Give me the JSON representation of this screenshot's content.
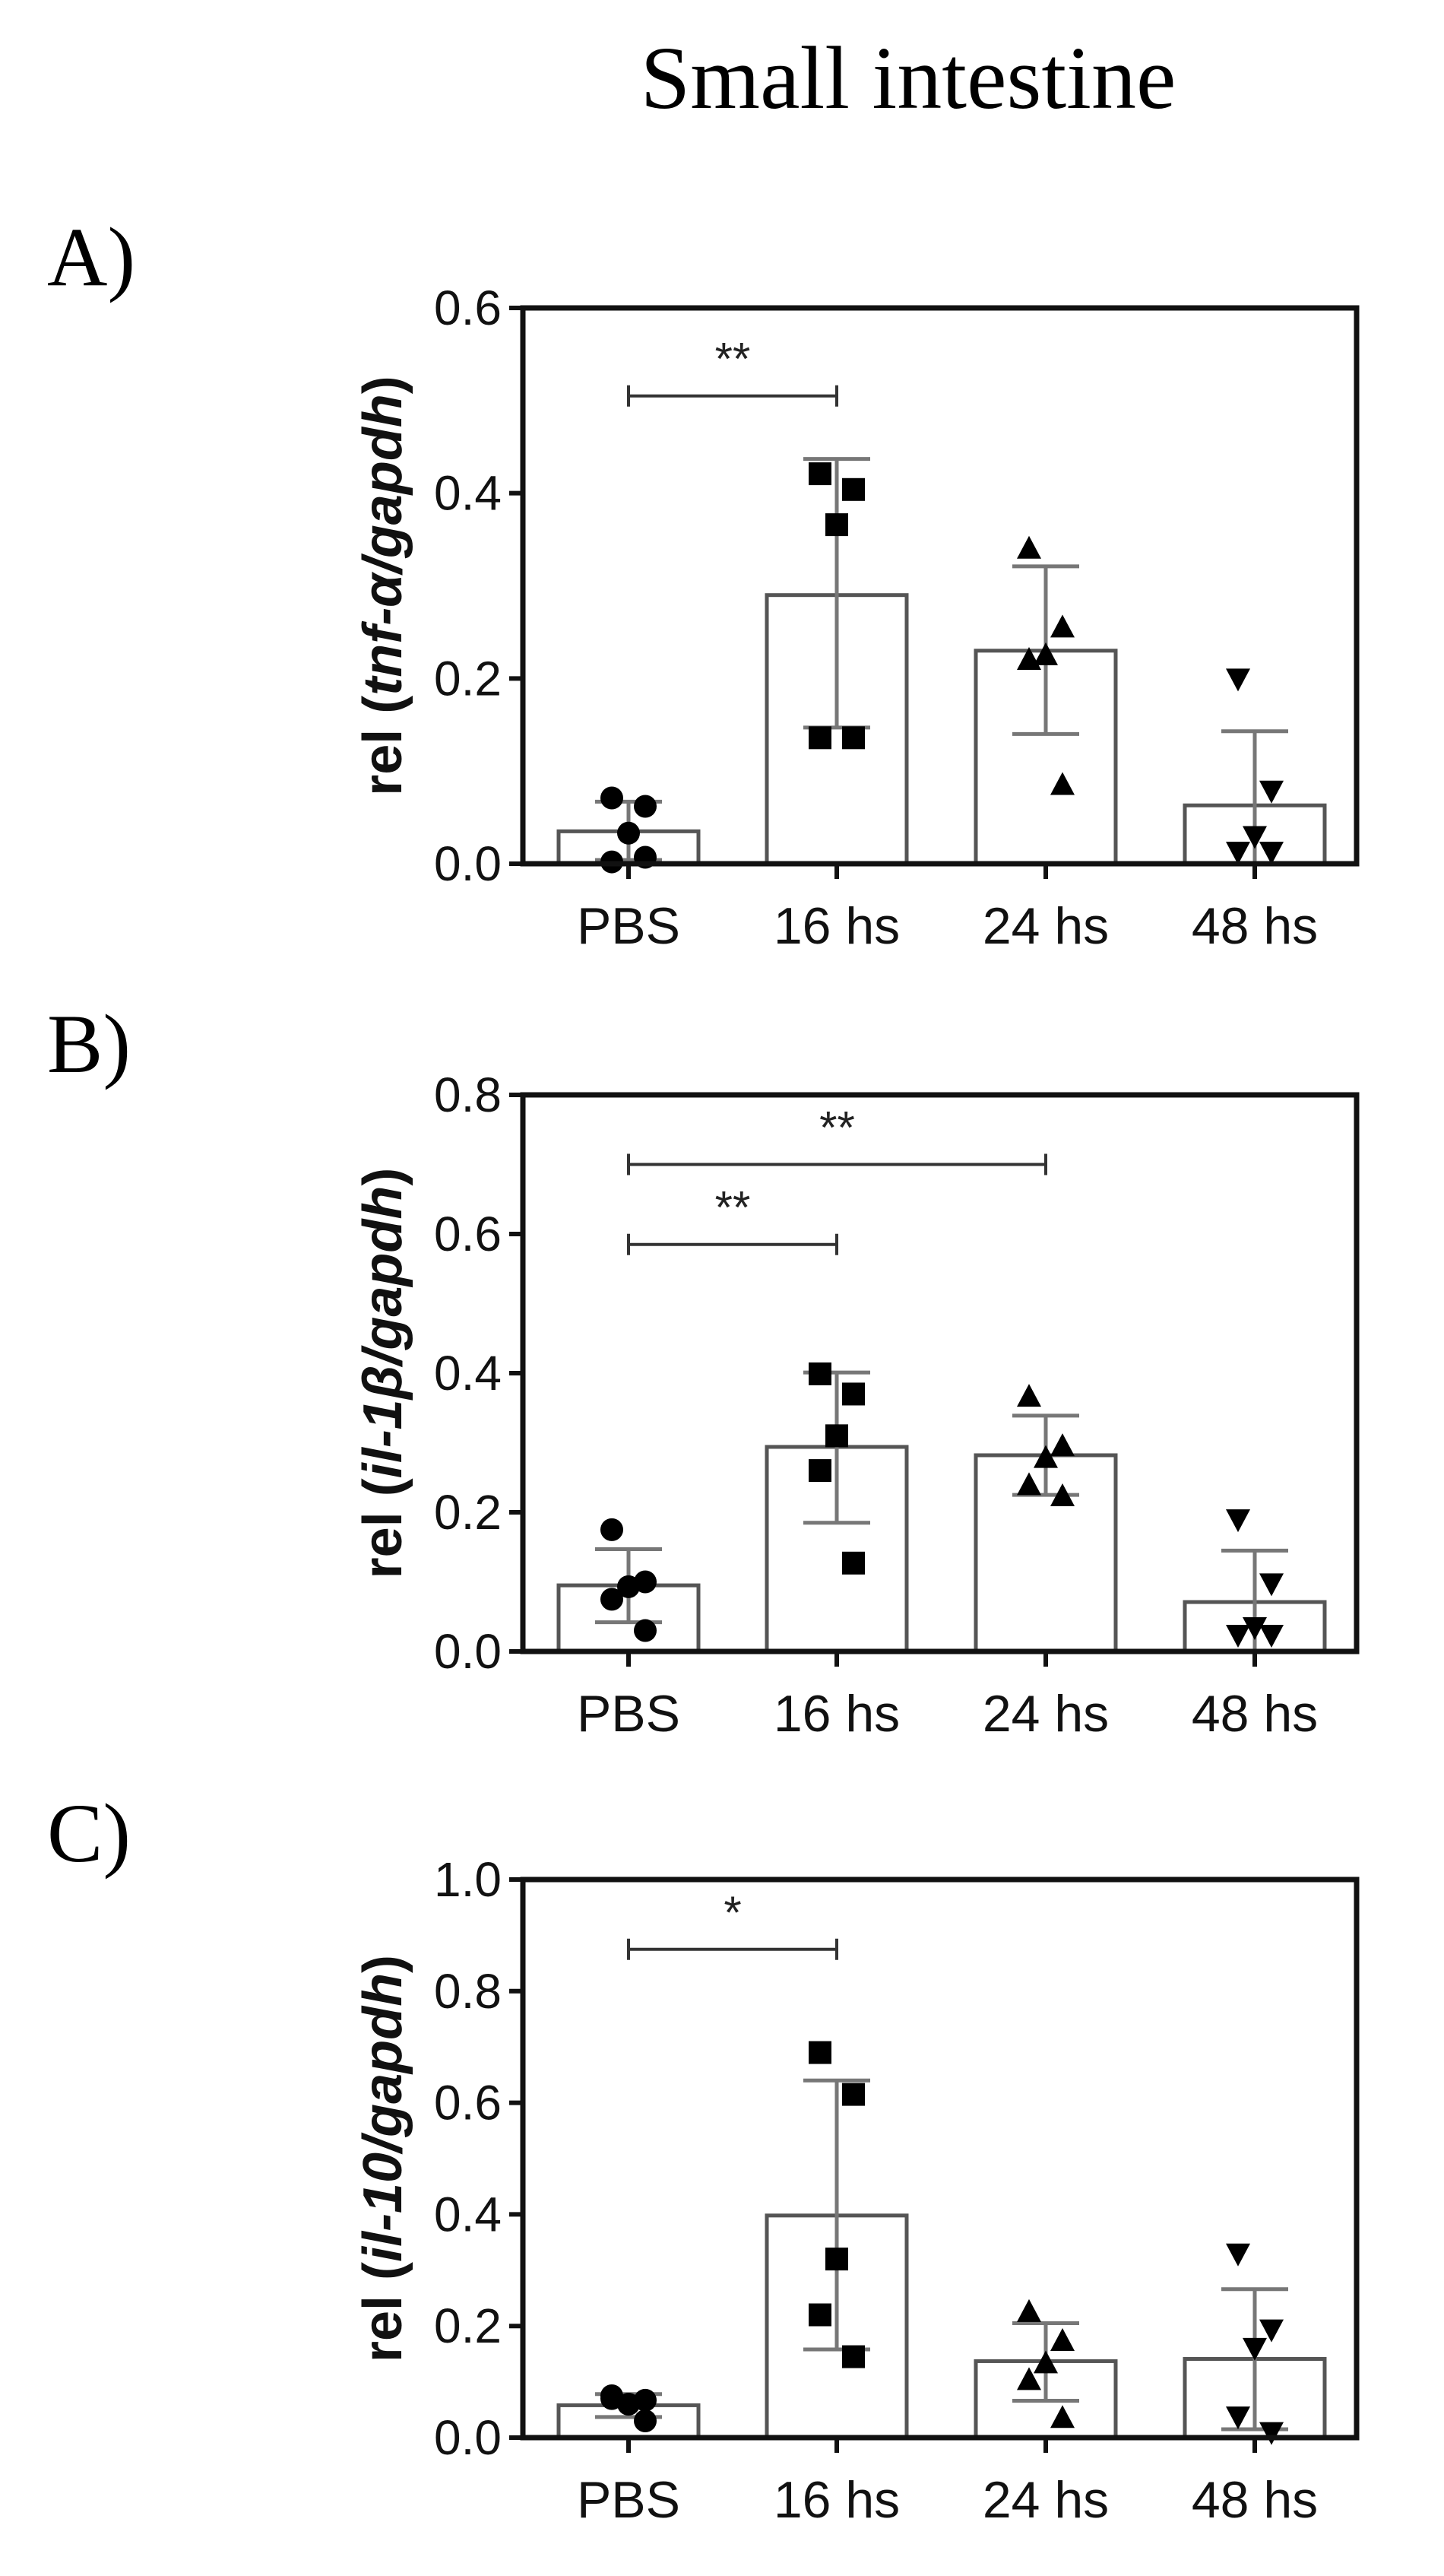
{
  "figure": {
    "title": "Small intestine",
    "colors": {
      "axis": "#111111",
      "bar_outline": "#555555",
      "error_bar": "#777777",
      "marker": "#000000",
      "background": "#ffffff"
    }
  },
  "chart_data": [
    {
      "panel": "A)",
      "type": "bar",
      "ylabel_prefix": "rel (",
      "ylabel_gene": "tnf-α/gapdh",
      "ylabel_suffix": ")",
      "categories": [
        "PBS",
        "16 hs",
        "24 hs",
        "48 hs"
      ],
      "markers": [
        "circle",
        "square",
        "triangle-up",
        "triangle-down"
      ],
      "ylim": [
        0,
        0.6
      ],
      "yticks": [
        0.0,
        0.2,
        0.4,
        0.6
      ],
      "ytick_labels": [
        "0.0",
        "0.2",
        "0.4",
        "0.6"
      ],
      "means": [
        0.035,
        0.29,
        0.23,
        0.063
      ],
      "err_upper": [
        0.067,
        0.437,
        0.321,
        0.143
      ],
      "err_lower": [
        0.004,
        0.147,
        0.14,
        null
      ],
      "points": [
        [
          0.071,
          0.062,
          0.033,
          0.002,
          0.007
        ],
        [
          0.421,
          0.404,
          0.366,
          0.136,
          0.136
        ],
        [
          0.34,
          0.255,
          0.225,
          0.22,
          0.085
        ],
        [
          0.2,
          0.079,
          0.03,
          0.013,
          0.013
        ]
      ],
      "significance": [
        {
          "from": 0,
          "to": 1,
          "y": 0.505,
          "label": "**"
        }
      ],
      "grid": false,
      "legend": null
    },
    {
      "panel": "B)",
      "type": "bar",
      "ylabel_prefix": "rel (",
      "ylabel_gene": "il-1β/gapdh",
      "ylabel_suffix": ")",
      "categories": [
        "PBS",
        "16 hs",
        "24 hs",
        "48 hs"
      ],
      "markers": [
        "circle",
        "square",
        "triangle-up",
        "triangle-down"
      ],
      "ylim": [
        0,
        0.8
      ],
      "yticks": [
        0.0,
        0.2,
        0.4,
        0.6,
        0.8
      ],
      "ytick_labels": [
        "0.0",
        "0.2",
        "0.4",
        "0.6",
        "0.8"
      ],
      "means": [
        0.095,
        0.294,
        0.282,
        0.071
      ],
      "err_upper": [
        0.147,
        0.401,
        0.339,
        0.145
      ],
      "err_lower": [
        0.042,
        0.185,
        0.225,
        null
      ],
      "points": [
        [
          0.175,
          0.1,
          0.093,
          0.075,
          0.03
        ],
        [
          0.399,
          0.37,
          0.31,
          0.26,
          0.127
        ],
        [
          0.366,
          0.295,
          0.278,
          0.239,
          0.223
        ],
        [
          0.19,
          0.098,
          0.035,
          0.024,
          0.024
        ]
      ],
      "significance": [
        {
          "from": 0,
          "to": 2,
          "y": 0.7,
          "label": "**"
        },
        {
          "from": 0,
          "to": 1,
          "y": 0.585,
          "label": "**"
        }
      ],
      "grid": false,
      "legend": null
    },
    {
      "panel": "C)",
      "type": "bar",
      "ylabel_prefix": "rel (",
      "ylabel_gene": "il-10/gapdh",
      "ylabel_suffix": ")",
      "categories": [
        "PBS",
        "16 hs",
        "24 hs",
        "48 hs"
      ],
      "markers": [
        "circle",
        "square",
        "triangle-up",
        "triangle-down"
      ],
      "ylim": [
        0,
        1.0
      ],
      "yticks": [
        0.0,
        0.2,
        0.4,
        0.6,
        0.8,
        1.0
      ],
      "ytick_labels": [
        "0.0",
        "0.2",
        "0.4",
        "0.6",
        "0.8",
        "1.0"
      ],
      "means": [
        0.058,
        0.398,
        0.137,
        0.141
      ],
      "err_upper": [
        0.078,
        0.64,
        0.205,
        0.266
      ],
      "err_lower": [
        0.037,
        0.158,
        0.066,
        0.015
      ],
      "points": [
        [
          0.07,
          0.03,
          0.06,
          0.075,
          0.067
        ],
        [
          0.69,
          0.615,
          0.32,
          0.22,
          0.145
        ],
        [
          0.225,
          0.173,
          0.133,
          0.103,
          0.035
        ],
        [
          0.33,
          0.194,
          0.161,
          0.038,
          0.01
        ]
      ],
      "significance": [
        {
          "from": 0,
          "to": 1,
          "y": 0.875,
          "label": "*"
        }
      ],
      "grid": false,
      "legend": null
    }
  ]
}
